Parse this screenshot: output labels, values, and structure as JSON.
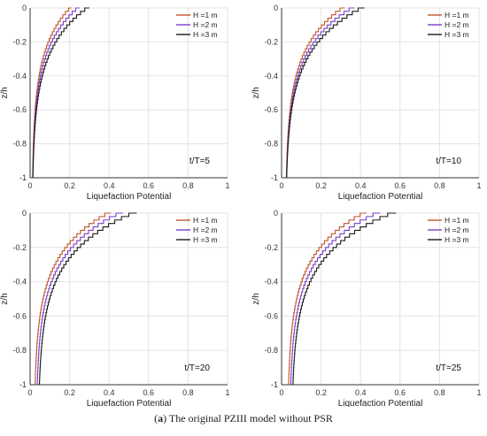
{
  "caption": {
    "letter": "a",
    "text": "The original PZIII model without PSR"
  },
  "colors": {
    "H1": "#c0552a",
    "H2": "#7a3ec8",
    "H3": "#1a1a1a",
    "grid": "#e3e3e3",
    "axis": "#333333"
  },
  "chart_data": [
    {
      "type": "line",
      "annotation": "t/T=5",
      "xlabel": "Liquefaction Potential",
      "ylabel": "z/h",
      "xlim": [
        0,
        1
      ],
      "ylim": [
        -1,
        0
      ],
      "xticks": [
        "0",
        "0.2",
        "0.4",
        "0.6",
        "0.8",
        "1"
      ],
      "yticks": [
        "0",
        "-0.2",
        "-0.4",
        "-0.6",
        "-0.8",
        "-1"
      ],
      "grid": true,
      "legend": "top-right",
      "series": [
        {
          "name": "H =1 m",
          "surface_value": 0.21,
          "base_value": 0.01
        },
        {
          "name": "H =2 m",
          "surface_value": 0.25,
          "base_value": 0.01
        },
        {
          "name": "H =3 m",
          "surface_value": 0.3,
          "base_value": 0.01
        }
      ]
    },
    {
      "type": "line",
      "annotation": "t/T=10",
      "xlabel": "Liquefaction Potential",
      "ylabel": "z/h",
      "xlim": [
        0,
        1
      ],
      "ylim": [
        -1,
        0
      ],
      "xticks": [
        "0",
        "0.2",
        "0.4",
        "0.6",
        "0.8",
        "1"
      ],
      "yticks": [
        "0",
        "-0.2",
        "-0.4",
        "-0.6",
        "-0.8",
        "-1"
      ],
      "grid": true,
      "legend": "top-right",
      "series": [
        {
          "name": "H =1 m",
          "surface_value": 0.32,
          "base_value": 0.02
        },
        {
          "name": "H =2 m",
          "surface_value": 0.37,
          "base_value": 0.02
        },
        {
          "name": "H =3 m",
          "surface_value": 0.42,
          "base_value": 0.02
        }
      ]
    },
    {
      "type": "line",
      "annotation": "t/T=20",
      "xlabel": "Liquefaction Potential",
      "ylabel": "z/h",
      "xlim": [
        0,
        1
      ],
      "ylim": [
        -1,
        0
      ],
      "xticks": [
        "0",
        "0.2",
        "0.4",
        "0.6",
        "0.8",
        "1"
      ],
      "yticks": [
        "0",
        "-0.2",
        "-0.4",
        "-0.6",
        "-0.8",
        "-1"
      ],
      "grid": true,
      "legend": "top-right",
      "series": [
        {
          "name": "H =1 m",
          "surface_value": 0.41,
          "base_value": 0.02
        },
        {
          "name": "H =2 m",
          "surface_value": 0.47,
          "base_value": 0.03
        },
        {
          "name": "H =3 m",
          "surface_value": 0.54,
          "base_value": 0.04
        }
      ]
    },
    {
      "type": "line",
      "annotation": "t/T=25",
      "xlabel": "Liquefaction Potential",
      "ylabel": "z/h",
      "xlim": [
        0,
        1
      ],
      "ylim": [
        -1,
        0
      ],
      "xticks": [
        "0",
        "0.2",
        "0.4",
        "0.6",
        "0.8",
        "1"
      ],
      "yticks": [
        "0",
        "-0.2",
        "-0.4",
        "-0.6",
        "-0.8",
        "-1"
      ],
      "grid": true,
      "legend": "top-right",
      "series": [
        {
          "name": "H =1 m",
          "surface_value": 0.43,
          "base_value": 0.03
        },
        {
          "name": "H =2 m",
          "surface_value": 0.5,
          "base_value": 0.04
        },
        {
          "name": "H =3 m",
          "surface_value": 0.58,
          "base_value": 0.05
        }
      ]
    }
  ]
}
